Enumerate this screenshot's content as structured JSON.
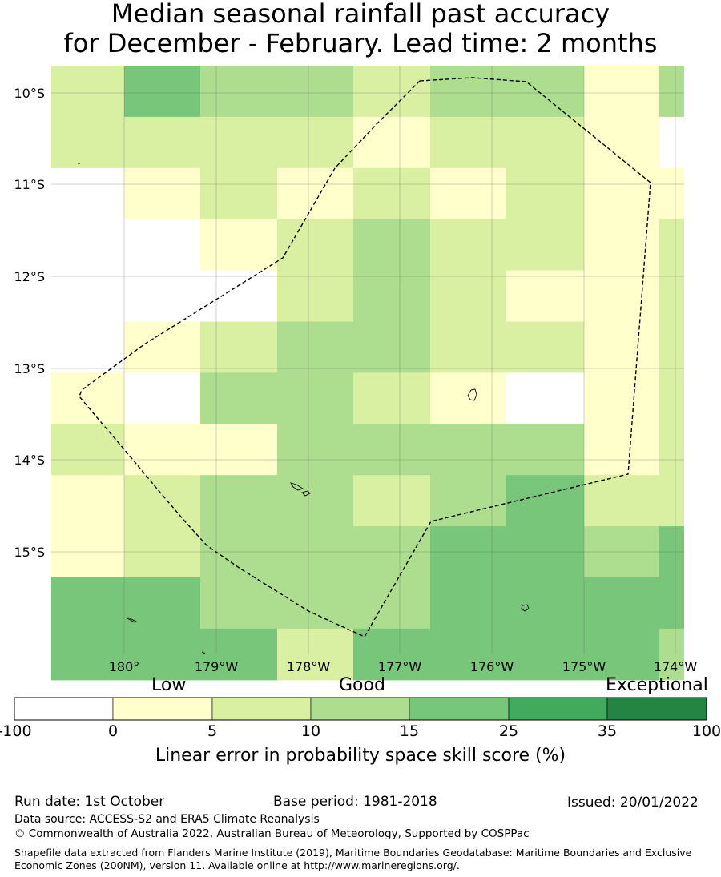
{
  "title": {
    "line1": "Median seasonal rainfall past accuracy",
    "line2": "for December - February. Lead time: 2 months"
  },
  "map": {
    "lat_labels": [
      "10°S",
      "11°S",
      "12°S",
      "13°S",
      "14°S",
      "15°S"
    ],
    "lon_labels": [
      "180°",
      "179°W",
      "178°W",
      "177°W",
      "176°W",
      "175°W",
      "174°W"
    ],
    "grid_classes": [
      [
        2,
        4,
        3,
        3,
        2,
        3,
        3,
        1,
        3
      ],
      [
        2,
        2,
        2,
        2,
        1,
        2,
        2,
        1,
        0
      ],
      [
        0,
        1,
        2,
        1,
        2,
        1,
        2,
        1,
        1
      ],
      [
        0,
        0,
        1,
        2,
        3,
        2,
        2,
        1,
        2
      ],
      [
        0,
        0,
        0,
        2,
        3,
        2,
        1,
        1,
        2
      ],
      [
        0,
        1,
        2,
        3,
        3,
        2,
        2,
        1,
        2
      ],
      [
        1,
        0,
        3,
        3,
        2,
        1,
        0,
        1,
        2
      ],
      [
        2,
        1,
        1,
        3,
        3,
        3,
        3,
        1,
        2
      ],
      [
        1,
        2,
        3,
        3,
        2,
        3,
        4,
        2,
        2
      ],
      [
        1,
        2,
        3,
        3,
        3,
        4,
        4,
        3,
        4
      ],
      [
        4,
        4,
        3,
        3,
        3,
        4,
        4,
        4,
        4
      ],
      [
        4,
        4,
        4,
        2,
        4,
        4,
        4,
        4,
        3
      ]
    ],
    "boundary_color": "#000000"
  },
  "colorbar": {
    "categories": [
      "Low",
      "Good",
      "Exceptional"
    ],
    "ticks": [
      "-100",
      "0",
      "5",
      "10",
      "15",
      "25",
      "35",
      "100"
    ],
    "colors": [
      "#ffffff",
      "#ffffcc",
      "#d9f0a3",
      "#addd8e",
      "#78c679",
      "#41ab5d",
      "#238443"
    ],
    "label": "Linear error in probability space skill score (%)"
  },
  "footer": {
    "run_date": "Run date: 1st October",
    "base_period": "Base period: 1981-2018",
    "issued": "Issued: 20/01/2022",
    "data_source": "Data source: ACCESS-S2 and ERA5 Climate Reanalysis",
    "copyright": "© Commonwealth of Australia 2022, Australian Bureau of Meteorology, Supported by COSPPac",
    "shapefile_note": "Shapefile data extracted from Flanders Marine Institute (2019), Maritime Boundaries Geodatabase: Maritime Boundaries and Exclusive Economic Zones (200NM), version 11. Available online at http://www.marineregions.org/."
  }
}
